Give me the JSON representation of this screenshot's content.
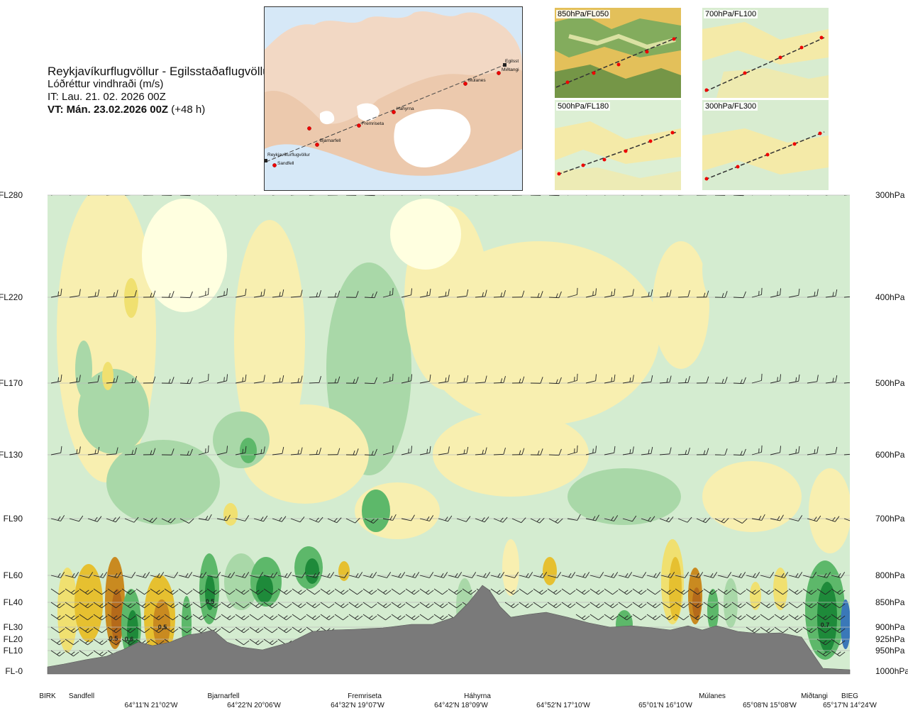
{
  "header": {
    "route": "Reykjavíkurflugvöllur - Egilsstaðaflugvöllur",
    "variable": "Lóðréttur vindhraði (m/s)",
    "issue_time": "IT: Lau. 21. 02. 2026 00Z",
    "valid_time": "VT: Mán. 23.02.2026 00Z",
    "lead": "(+48 h)"
  },
  "map": {
    "waypoints": [
      "Reykjavíkurflugvöllur",
      "Sandfell",
      "Bjarnarfell",
      "Fremriseta",
      "Háhyrna",
      "Múlanes",
      "Egilsst",
      "Miðtangi"
    ]
  },
  "insets": [
    {
      "label": "850hPa/FL050"
    },
    {
      "label": "700hPa/FL100"
    },
    {
      "label": "500hPa/FL180"
    },
    {
      "label": "300hPa/FL300"
    }
  ],
  "chart_data": {
    "type": "heatmap",
    "variable": "Lóðréttur vindhraði (m/s)",
    "y_left_labels": [
      "FL280",
      "FL220",
      "FL170",
      "FL130",
      "FL90",
      "FL60",
      "FL40",
      "FL30",
      "FL20",
      "FL10",
      "FL-0"
    ],
    "y_right_labels": [
      "300hPa",
      "400hPa",
      "500hPa",
      "600hPa",
      "700hPa",
      "800hPa",
      "850hPa",
      "900hPa",
      "925hPa",
      "950hPa",
      "1000hPa"
    ],
    "x_station_labels": [
      "BIRK",
      "Sandfell",
      "Bjarnarfell",
      "Fremriseta",
      "Háhyrna",
      "Múlanes",
      "Miðtangi",
      "BIEG"
    ],
    "x_coord_labels": [
      "64°11'N 21°02'W",
      "64°22'N 20°06'W",
      "64°32'N 19°07'W",
      "64°42'N 18°09'W",
      "64°52'N 17°10'W",
      "65°01'N 16°10'W",
      "65°08'N 15°08'W",
      "65°17'N 14°24'W"
    ],
    "contour_labels": [
      "0.5",
      "0.6",
      "0.5",
      "0.5",
      "0.7"
    ],
    "colors": {
      "down_strong": "#1e8a3a",
      "down_mid": "#5db86a",
      "down_light": "#a9d8a8",
      "down_faint": "#d4ecd0",
      "neutral": "#ffffe0",
      "up_faint": "#f8efb0",
      "up_light": "#f0e070",
      "up_mid": "#e6c030",
      "up_strong": "#c98a20",
      "up_max": "#b56a1a",
      "terrain": "#7a7a7a",
      "extreme_down": "#3a78b8"
    }
  }
}
